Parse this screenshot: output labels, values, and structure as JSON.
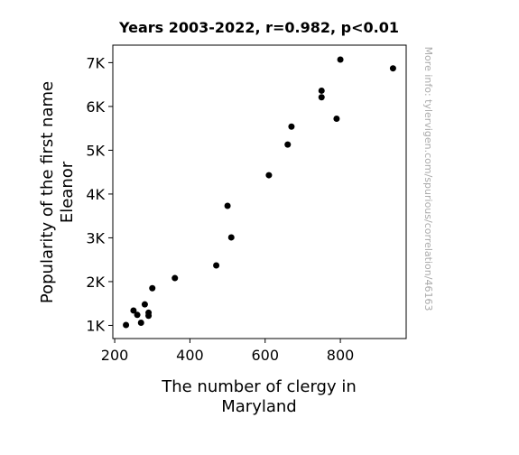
{
  "chart_data": {
    "type": "scatter",
    "title": "Years 2003-2022, r=0.982, p<0.01",
    "xlabel_lines": [
      "The number of clergy in",
      "Maryland"
    ],
    "ylabel_lines": [
      "Popularity of the first name",
      "Eleanor"
    ],
    "xlim": [
      195,
      975
    ],
    "ylim": [
      700,
      7400
    ],
    "x_ticks": [
      {
        "value": 200,
        "label": "200"
      },
      {
        "value": 400,
        "label": "400"
      },
      {
        "value": 600,
        "label": "600"
      },
      {
        "value": 800,
        "label": "800"
      }
    ],
    "y_ticks": [
      {
        "value": 1000,
        "label": "1K"
      },
      {
        "value": 2000,
        "label": "2K"
      },
      {
        "value": 3000,
        "label": "3K"
      },
      {
        "value": 4000,
        "label": "4K"
      },
      {
        "value": 5000,
        "label": "5K"
      },
      {
        "value": 6000,
        "label": "6K"
      },
      {
        "value": 7000,
        "label": "7K"
      }
    ],
    "grid": false,
    "points": [
      {
        "x": 230,
        "y": 1010
      },
      {
        "x": 250,
        "y": 1340
      },
      {
        "x": 260,
        "y": 1240
      },
      {
        "x": 270,
        "y": 1060
      },
      {
        "x": 280,
        "y": 1480
      },
      {
        "x": 290,
        "y": 1220
      },
      {
        "x": 290,
        "y": 1290
      },
      {
        "x": 300,
        "y": 1850
      },
      {
        "x": 360,
        "y": 2080
      },
      {
        "x": 470,
        "y": 2370
      },
      {
        "x": 500,
        "y": 3730
      },
      {
        "x": 510,
        "y": 3010
      },
      {
        "x": 610,
        "y": 4430
      },
      {
        "x": 660,
        "y": 5130
      },
      {
        "x": 670,
        "y": 5540
      },
      {
        "x": 750,
        "y": 6210
      },
      {
        "x": 750,
        "y": 6360
      },
      {
        "x": 790,
        "y": 5720
      },
      {
        "x": 800,
        "y": 7070
      },
      {
        "x": 940,
        "y": 6870
      }
    ],
    "marker_color": "#000000"
  },
  "watermark": "More info: tylervigen.com/spurious/correlation/46163"
}
